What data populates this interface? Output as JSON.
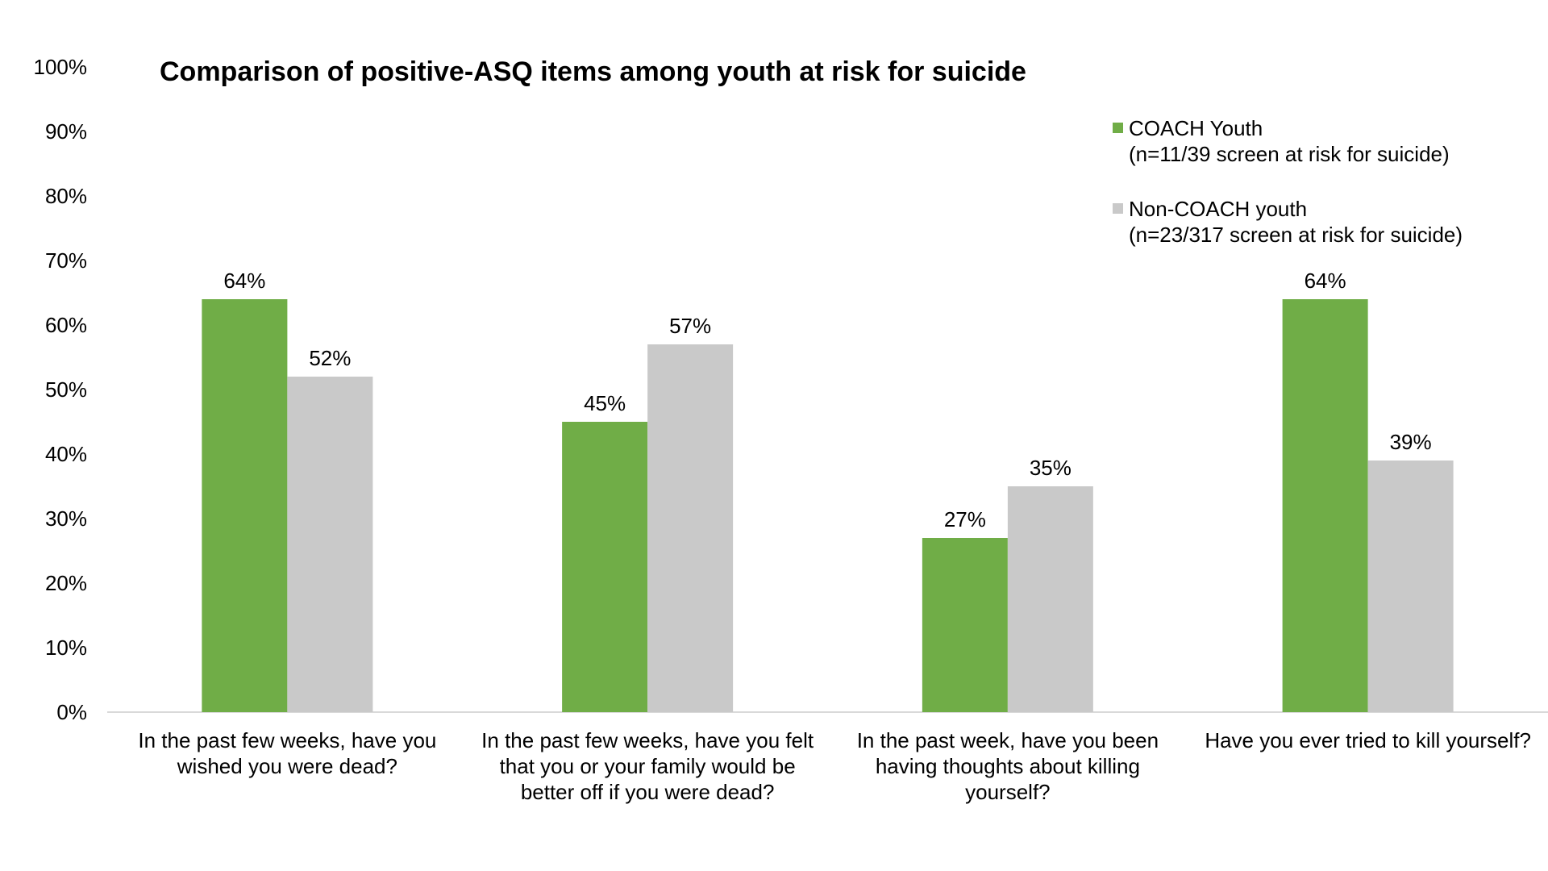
{
  "chart_data": {
    "type": "bar",
    "title": "Comparison of positive-ASQ items among youth at risk for suicide",
    "categories": [
      [
        "In the past few weeks, have you",
        "wished you were dead?"
      ],
      [
        "In the past few weeks, have you felt",
        "that you or your family would be",
        "better off if you were dead?"
      ],
      [
        "In the past week, have you been",
        "having thoughts about killing",
        "yourself?"
      ],
      [
        "Have you ever tried to kill yourself?"
      ]
    ],
    "series": [
      {
        "name": [
          "COACH Youth",
          "(n=11/39 screen at risk for suicide)"
        ],
        "values": [
          0.64,
          0.45,
          0.27,
          0.64
        ],
        "labels": [
          "64%",
          "45%",
          "27%",
          "64%"
        ],
        "color": "#70AD47"
      },
      {
        "name": [
          "Non-COACH youth",
          "(n=23/317 screen at risk for suicide)"
        ],
        "values": [
          0.52,
          0.57,
          0.35,
          0.39
        ],
        "labels": [
          "52%",
          "57%",
          "35%",
          "39%"
        ],
        "color": "#C9C9C9"
      }
    ],
    "yticks": [
      "0%",
      "10%",
      "20%",
      "30%",
      "40%",
      "50%",
      "60%",
      "70%",
      "80%",
      "90%",
      "100%"
    ],
    "ylim": [
      0,
      1
    ],
    "grid": false,
    "legend_position": "top-right"
  }
}
